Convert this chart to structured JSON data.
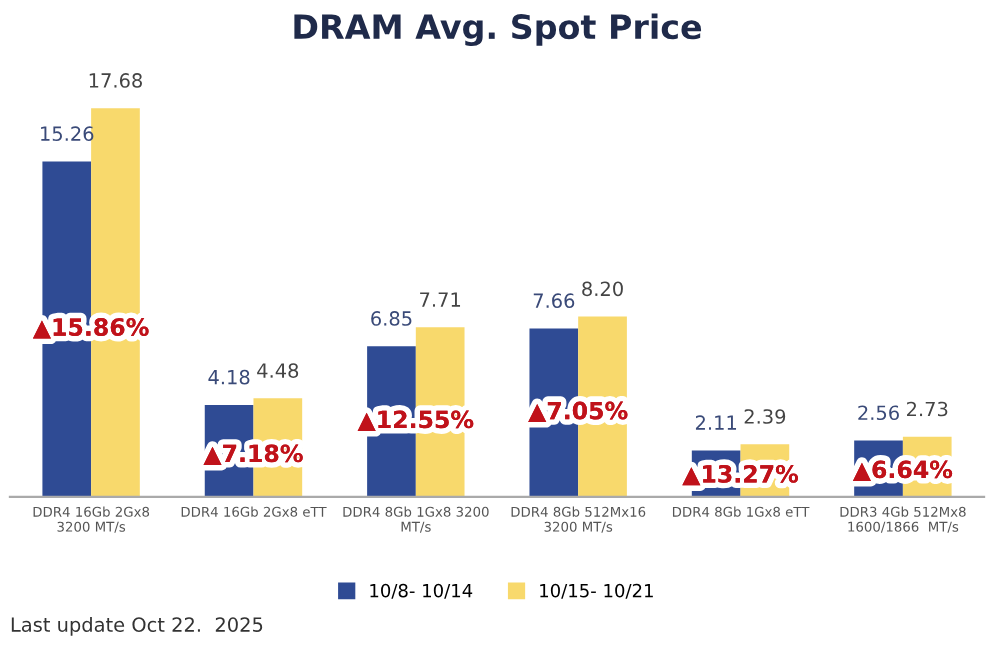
{
  "chart_data": {
    "type": "bar",
    "title": "DRAM Avg. Spot Price",
    "categories": [
      "DDR4 16Gb 2Gx8\n3200 MT/s",
      "DDR4 16Gb 2Gx8 eTT",
      "DDR4 8Gb 1Gx8 3200\nMT/s",
      "DDR4 8Gb 512Mx16\n3200 MT/s",
      "DDR4 8Gb 1Gx8 eTT",
      "DDR3 4Gb 512Mx8\n1600/1866  MT/s"
    ],
    "series": [
      {
        "name": "10/8- 10/14",
        "color": "#2f4b94",
        "values": [
          15.26,
          4.18,
          6.85,
          7.66,
          2.11,
          2.56
        ],
        "value_labels": [
          "15.26",
          "4.18",
          "6.85",
          "7.66",
          "2.11",
          "2.56"
        ]
      },
      {
        "name": "10/15- 10/21",
        "color": "#f8d96c",
        "values": [
          17.68,
          4.48,
          7.71,
          8.2,
          2.39,
          2.73
        ],
        "value_labels": [
          "17.68",
          "4.48",
          "7.71",
          "8.20",
          "2.39",
          "2.73"
        ]
      }
    ],
    "legend": "bottom",
    "grid": false,
    "annotations": [
      "▲15.86%",
      "▲7.18%",
      "▲12.55%",
      "▲7.05%",
      "▲13.27%",
      "▲6.64%",
      "Last update Oct 22.  2025"
    ]
  }
}
